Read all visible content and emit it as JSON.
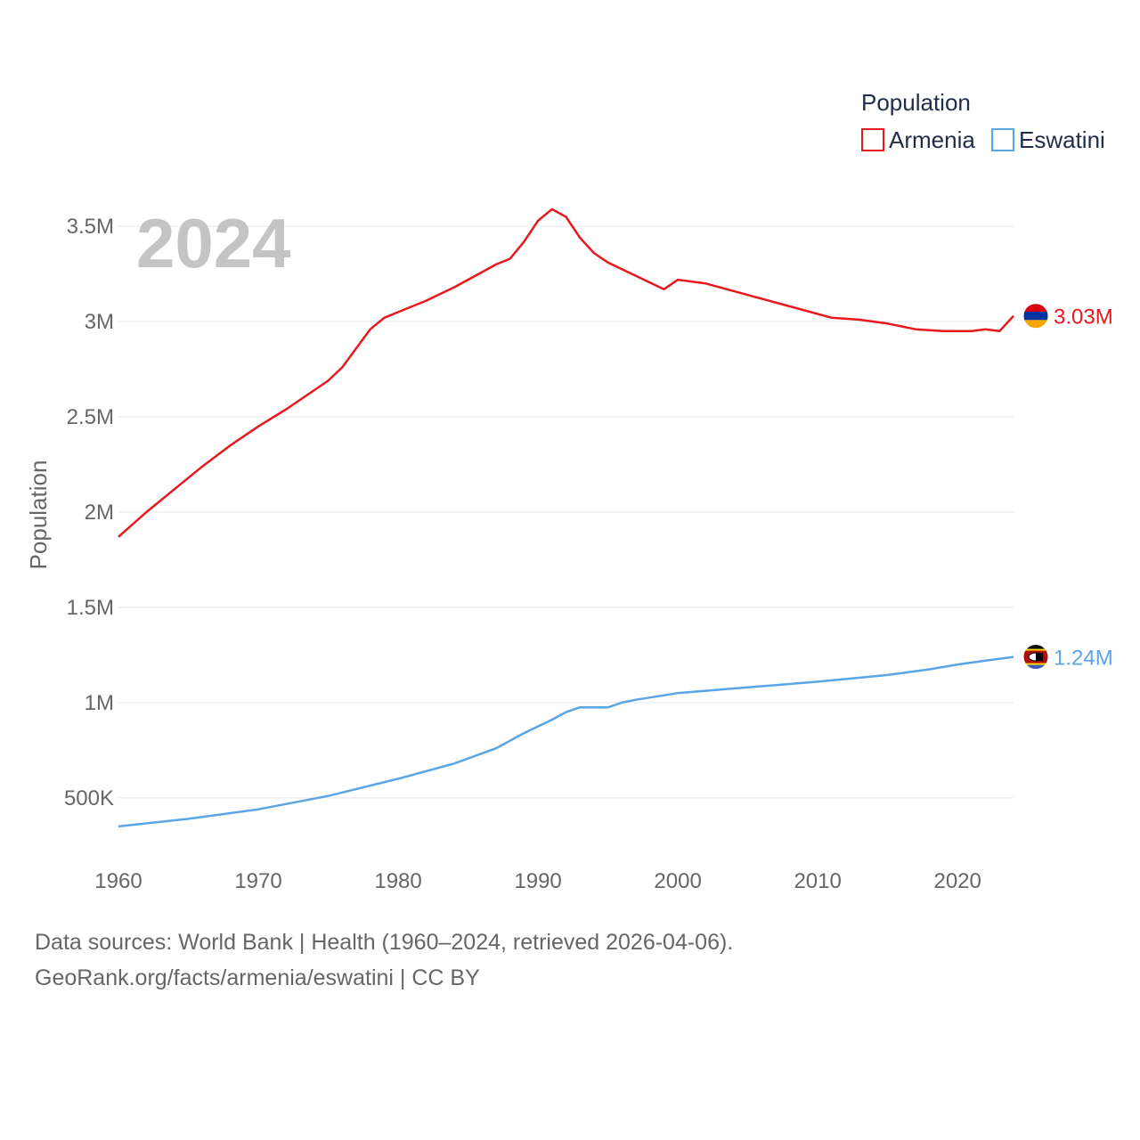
{
  "chart_data": {
    "type": "line",
    "title": "",
    "year_label": "2024",
    "xlabel": "",
    "ylabel": "Population",
    "xlim": [
      1960,
      2024
    ],
    "ylim": [
      200000,
      3800000
    ],
    "x_ticks": [
      1960,
      1970,
      1980,
      1990,
      2000,
      2010,
      2020
    ],
    "y_ticks": [
      {
        "value": 500000,
        "label": "500K"
      },
      {
        "value": 1000000,
        "label": "1M"
      },
      {
        "value": 1500000,
        "label": "1.5M"
      },
      {
        "value": 2000000,
        "label": "2M"
      },
      {
        "value": 2500000,
        "label": "2.5M"
      },
      {
        "value": 3000000,
        "label": "3M"
      },
      {
        "value": 3500000,
        "label": "3.5M"
      }
    ],
    "grid": true,
    "legend": {
      "title": "Population",
      "position": "top-right"
    },
    "series": [
      {
        "name": "Armenia",
        "color": "#e8191e",
        "end_label": "3.03M",
        "flag": "armenia-flag",
        "x": [
          1960,
          1962,
          1964,
          1966,
          1968,
          1970,
          1972,
          1974,
          1975,
          1976,
          1978,
          1979,
          1980,
          1982,
          1984,
          1986,
          1987,
          1988,
          1989,
          1990,
          1991,
          1992,
          1993,
          1994,
          1995,
          1997,
          1999,
          2000,
          2002,
          2005,
          2008,
          2011,
          2013,
          2015,
          2017,
          2019,
          2021,
          2022,
          2023,
          2024
        ],
        "values": [
          1870000,
          2000000,
          2120000,
          2240000,
          2350000,
          2450000,
          2540000,
          2640000,
          2690000,
          2760000,
          2960000,
          3020000,
          3050000,
          3110000,
          3180000,
          3260000,
          3300000,
          3330000,
          3420000,
          3530000,
          3590000,
          3550000,
          3440000,
          3360000,
          3310000,
          3240000,
          3170000,
          3220000,
          3200000,
          3140000,
          3080000,
          3020000,
          3010000,
          2990000,
          2960000,
          2950000,
          2950000,
          2960000,
          2950000,
          3030000
        ]
      },
      {
        "name": "Eswatini",
        "color": "#5aa5e6",
        "end_label": "1.24M",
        "flag": "eswatini-flag",
        "x": [
          1960,
          1965,
          1970,
          1975,
          1980,
          1984,
          1987,
          1989,
          1991,
          1992,
          1993,
          1994,
          1995,
          1996,
          1997,
          2000,
          2005,
          2010,
          2015,
          2018,
          2020,
          2022,
          2024
        ],
        "values": [
          350000,
          390000,
          440000,
          510000,
          600000,
          680000,
          760000,
          840000,
          910000,
          950000,
          975000,
          975000,
          975000,
          1000000,
          1015000,
          1050000,
          1080000,
          1110000,
          1145000,
          1175000,
          1200000,
          1220000,
          1240000
        ]
      }
    ]
  },
  "source": {
    "line1": "Data sources: World Bank | Health (1960–2024, retrieved 2026-04-06).",
    "line2": "GeoRank.org/facts/armenia/eswatini | CC BY"
  }
}
